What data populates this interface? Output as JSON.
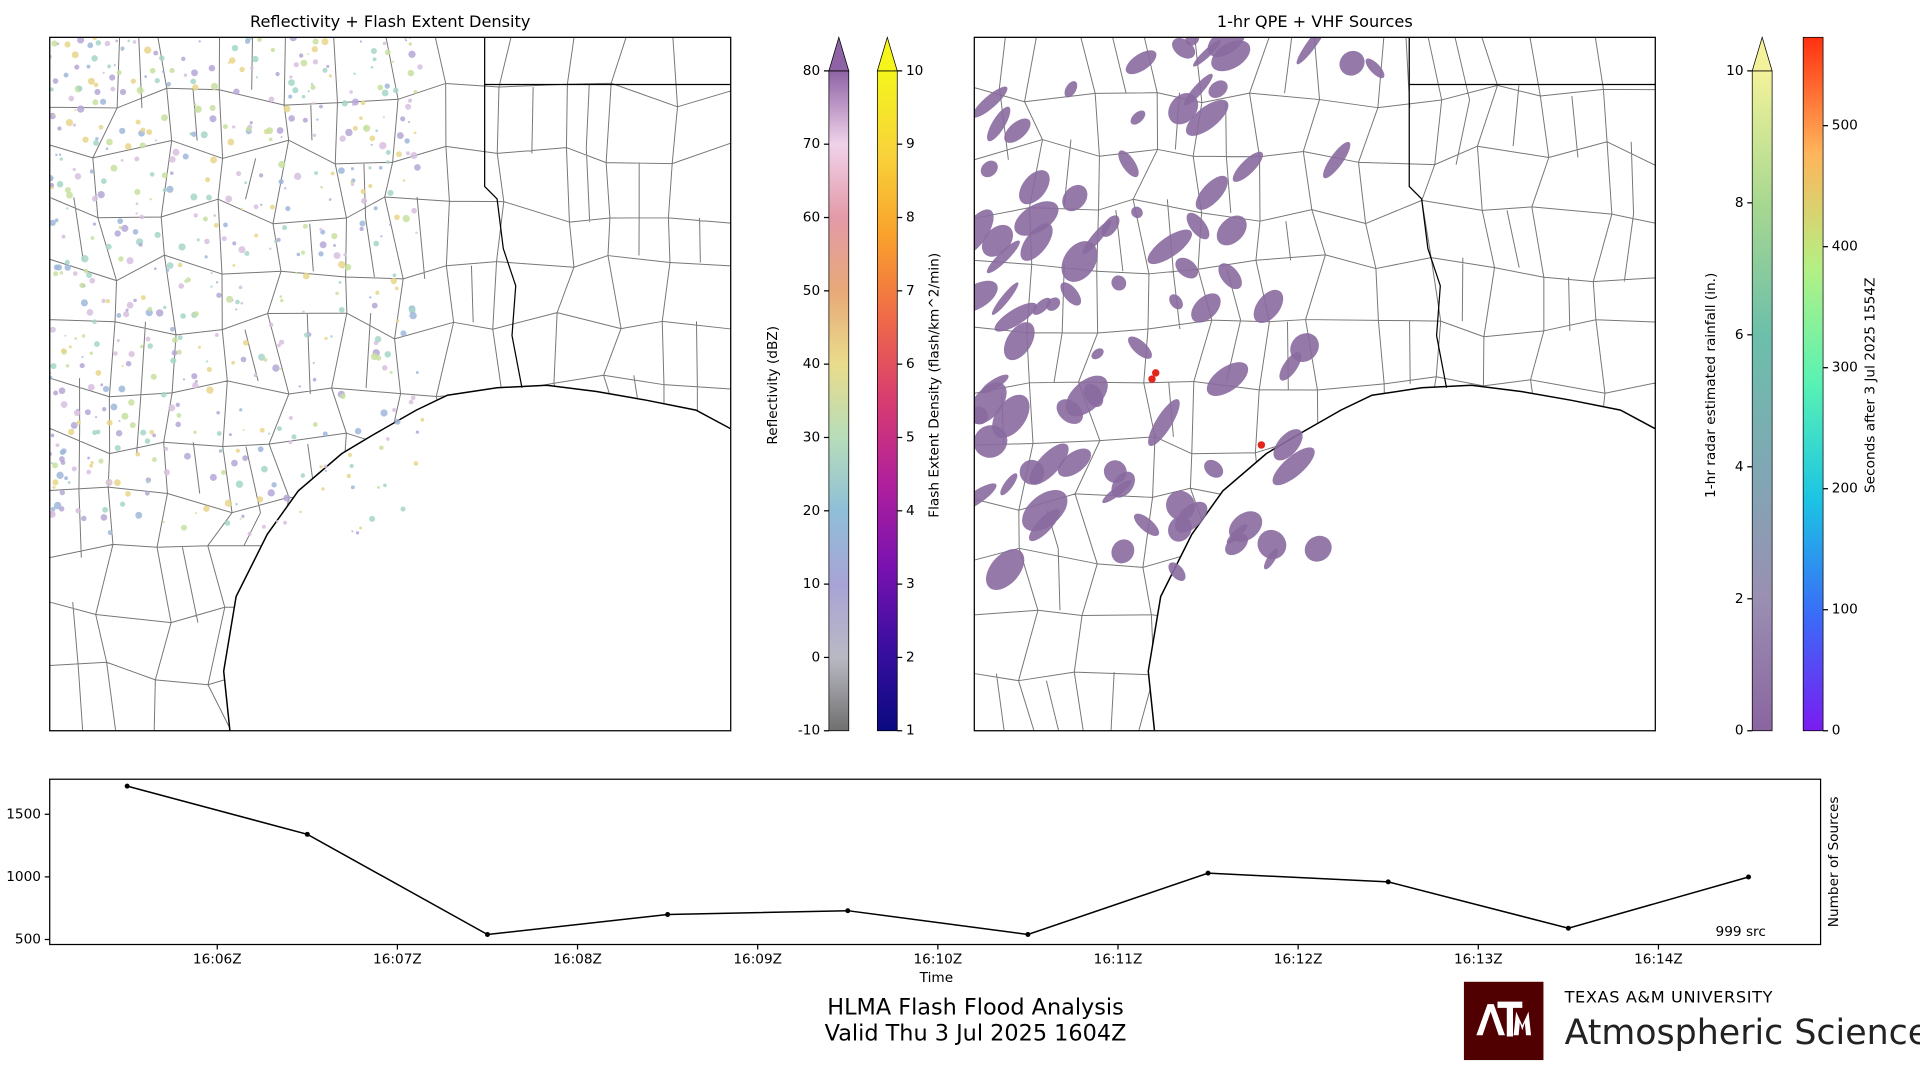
{
  "title": "HLMA Flash Flood Analysis",
  "subtitle": "Valid Thu 3 Jul 2025 1604Z",
  "logo": {
    "university": "TEXAS A&M UNIVERSITY",
    "department": "Atmospheric Sciences"
  },
  "chart_data": [
    {
      "type": "map",
      "title": "Reflectivity + Flash Extent Density",
      "colorbars": [
        {
          "label": "Reflectivity (dBZ)",
          "lim": [
            -10,
            80
          ],
          "ticks": [
            -10,
            0,
            10,
            20,
            30,
            40,
            50,
            60,
            70,
            80
          ],
          "extend": "max",
          "colors": [
            "#707070",
            "#b9b9c4",
            "#a8a3d6",
            "#8fbfd8",
            "#b7ddb9",
            "#e9dc8c",
            "#e8a978",
            "#e39aa8",
            "#f0d2ea",
            "#8e63a5"
          ]
        },
        {
          "label": "Flash Extent Density (flash/km^2/min)",
          "lim": [
            1,
            10
          ],
          "ticks": [
            1,
            2,
            3,
            4,
            5,
            6,
            7,
            8,
            9,
            10
          ],
          "extend": "max",
          "colors": [
            "#0a0a80",
            "#3a0ea0",
            "#7a12b0",
            "#b0209c",
            "#d83c70",
            "#ef6a48",
            "#f9a12c",
            "#f8d33a",
            "#f5f51c"
          ]
        }
      ]
    },
    {
      "type": "map",
      "title": "1-hr QPE + VHF Sources",
      "colorbars": [
        {
          "label": "1-hr radar estimated rainfall (in.)",
          "lim": [
            0,
            10
          ],
          "ticks": [
            0,
            2,
            4,
            6,
            8,
            10
          ],
          "extend": "max",
          "colors": [
            "#8a65a0",
            "#9a8fb2",
            "#7fa8b4",
            "#6cbfaa",
            "#a8d890",
            "#f3f29a"
          ]
        },
        {
          "label": "Seconds after 3 Jul 2025 1554Z",
          "lim": [
            0,
            573
          ],
          "ticks": [
            0,
            100,
            200,
            300,
            400,
            500
          ],
          "extend": "none",
          "colors": [
            "#7a1cf0",
            "#3a6cf7",
            "#1cc4e4",
            "#58f2b4",
            "#b4f084",
            "#ffb45a",
            "#ff3010"
          ]
        }
      ]
    },
    {
      "type": "line",
      "xlabel": "Time",
      "ylabel": "Number of Sources",
      "annotation": "999 src",
      "color": "#000000",
      "x": [
        5.5,
        6.5,
        7.5,
        8.5,
        9.5,
        10.5,
        11.5,
        12.5,
        13.5,
        14.5
      ],
      "values": [
        1725,
        1340,
        540,
        700,
        730,
        540,
        1030,
        960,
        590,
        999
      ],
      "xlim": [
        5.07,
        14.9
      ],
      "ylim": [
        460,
        1780
      ],
      "xticks": [
        {
          "value": 6,
          "label": "16:06Z"
        },
        {
          "value": 7,
          "label": "16:07Z"
        },
        {
          "value": 8,
          "label": "16:08Z"
        },
        {
          "value": 9,
          "label": "16:09Z"
        },
        {
          "value": 10,
          "label": "16:10Z"
        },
        {
          "value": 11,
          "label": "16:11Z"
        },
        {
          "value": 12,
          "label": "16:12Z"
        },
        {
          "value": 13,
          "label": "16:13Z"
        },
        {
          "value": 14,
          "label": "16:14Z"
        }
      ],
      "yticks": [
        500,
        1000,
        1500
      ]
    }
  ]
}
